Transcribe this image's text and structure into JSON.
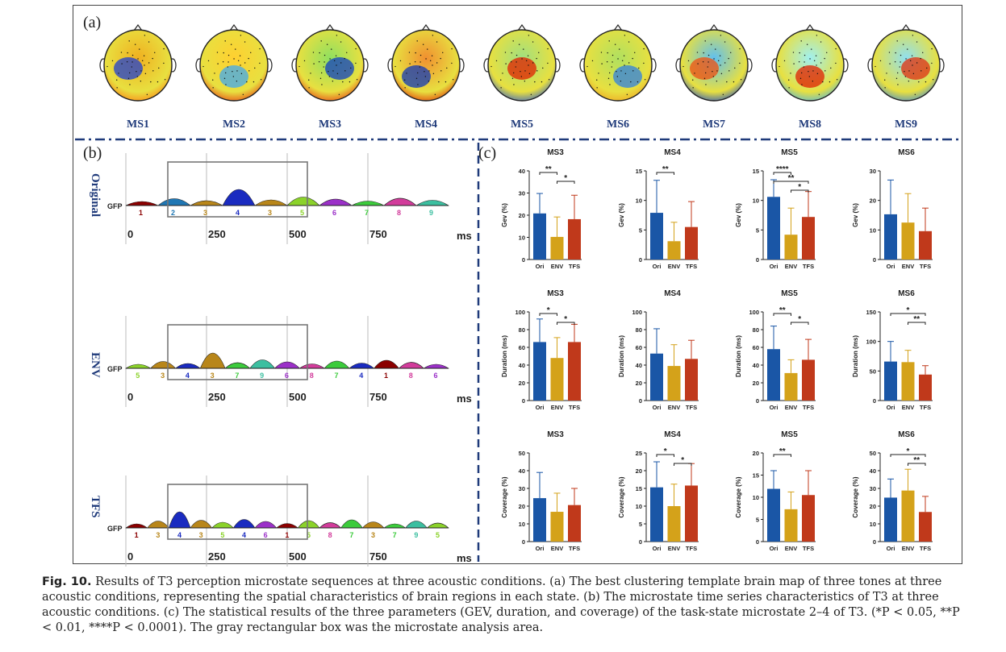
{
  "panel_labels": {
    "a": "(a)",
    "b": "(b)",
    "c": "(c)"
  },
  "brain_maps": [
    {
      "label": "MS1",
      "c1": "#f0b020",
      "c2": "#ff7a10",
      "c3": "#1f3fd0"
    },
    {
      "label": "MS2",
      "c1": "#ffd030",
      "c2": "#e83010",
      "c3": "#40a8f0"
    },
    {
      "label": "MS3",
      "c1": "#90e060",
      "c2": "#e83010",
      "c3": "#1040c0"
    },
    {
      "label": "MS4",
      "c1": "#f09030",
      "c2": "#e02000",
      "c3": "#1038b8"
    },
    {
      "label": "MS5",
      "c1": "#a0e080",
      "c2": "#2050d8",
      "c3": "#e02000"
    },
    {
      "label": "MS6",
      "c1": "#b0e060",
      "c2": "#f0a020",
      "c3": "#3080e0"
    },
    {
      "label": "MS7",
      "c1": "#60c0f0",
      "c2": "#1040d0",
      "c3": "#f05010"
    },
    {
      "label": "MS8",
      "c1": "#a0f0f0",
      "c2": "#40b0f0",
      "c3": "#e02000"
    },
    {
      "label": "MS9",
      "c1": "#90e0f0",
      "c2": "#3080e0",
      "c3": "#e03010"
    }
  ],
  "gfp": {
    "axis_label": "GFP",
    "ticks": [
      "0",
      "250",
      "500",
      "750"
    ],
    "unit": "ms",
    "rows": [
      {
        "condition": "Original",
        "numbers": [
          "1",
          "2",
          "3",
          "4",
          "3",
          "5",
          "6",
          "7",
          "8",
          "9"
        ]
      },
      {
        "condition": "ENV",
        "numbers": [
          "5",
          "3",
          "4",
          "3",
          "7",
          "9",
          "6",
          "8",
          "7",
          "4",
          "1",
          "8",
          "6"
        ]
      },
      {
        "condition": "TFS",
        "numbers": [
          "1",
          "3",
          "4",
          "3",
          "5",
          "4",
          "6",
          "1",
          "5",
          "8",
          "7",
          "3",
          "7",
          "9",
          "5"
        ]
      }
    ]
  },
  "chart_data": [
    {
      "type": "bar",
      "title": "MS3",
      "ylabel": "Gev (%)",
      "ylim": [
        0,
        40
      ],
      "yticks": [
        0,
        10,
        20,
        30,
        40
      ],
      "categories": [
        "Ori",
        "ENV",
        "TFS"
      ],
      "values": [
        20.8,
        10.2,
        18.2
      ],
      "errors": [
        9,
        9,
        10.8
      ],
      "sig": [
        {
          "a": 0,
          "b": 1,
          "label": "**"
        },
        {
          "a": 1,
          "b": 2,
          "label": "*"
        }
      ]
    },
    {
      "type": "bar",
      "title": "MS4",
      "ylabel": "Gev (%)",
      "ylim": [
        0,
        15
      ],
      "yticks": [
        0,
        5,
        10,
        15
      ],
      "categories": [
        "Ori",
        "ENV",
        "TFS"
      ],
      "values": [
        7.9,
        3.1,
        5.5
      ],
      "errors": [
        5.5,
        3.2,
        4.3
      ],
      "sig": [
        {
          "a": 0,
          "b": 1,
          "label": "**"
        }
      ]
    },
    {
      "type": "bar",
      "title": "MS5",
      "ylabel": "Gev (%)",
      "ylim": [
        0,
        15
      ],
      "yticks": [
        0,
        5,
        10,
        15
      ],
      "categories": [
        "Ori",
        "ENV",
        "TFS"
      ],
      "values": [
        10.6,
        4.2,
        7.2
      ],
      "errors": [
        2.9,
        4.5,
        4.3
      ],
      "sig": [
        {
          "a": 0,
          "b": 1,
          "label": "****"
        },
        {
          "a": 0,
          "b": 2,
          "label": "**"
        },
        {
          "a": 1,
          "b": 2,
          "label": "*"
        }
      ]
    },
    {
      "type": "bar",
      "title": "MS6",
      "ylabel": "Gev (%)",
      "ylim": [
        0,
        30
      ],
      "yticks": [
        0,
        10,
        20,
        30
      ],
      "categories": [
        "Ori",
        "ENV",
        "TFS"
      ],
      "values": [
        15.3,
        12.5,
        9.6
      ],
      "errors": [
        11.6,
        9.8,
        7.8
      ],
      "sig": []
    },
    {
      "type": "bar",
      "title": "MS3",
      "ylabel": "Duration (ms)",
      "ylim": [
        0,
        100
      ],
      "yticks": [
        0,
        20,
        40,
        60,
        80,
        100
      ],
      "categories": [
        "Ori",
        "ENV",
        "TFS"
      ],
      "values": [
        66,
        48,
        66
      ],
      "errors": [
        26,
        23,
        20
      ],
      "sig": [
        {
          "a": 0,
          "b": 1,
          "label": "*"
        },
        {
          "a": 1,
          "b": 2,
          "label": "*"
        }
      ]
    },
    {
      "type": "bar",
      "title": "MS4",
      "ylabel": "Duration (ms)",
      "ylim": [
        0,
        100
      ],
      "yticks": [
        0,
        20,
        40,
        60,
        80,
        100
      ],
      "categories": [
        "Ori",
        "ENV",
        "TFS"
      ],
      "values": [
        53,
        39,
        47
      ],
      "errors": [
        28,
        24,
        21
      ],
      "sig": []
    },
    {
      "type": "bar",
      "title": "MS5",
      "ylabel": "Duration (ms)",
      "ylim": [
        0,
        100
      ],
      "yticks": [
        0,
        20,
        40,
        60,
        80,
        100
      ],
      "categories": [
        "Ori",
        "ENV",
        "TFS"
      ],
      "values": [
        58,
        31,
        46
      ],
      "errors": [
        26,
        15,
        23
      ],
      "sig": [
        {
          "a": 0,
          "b": 1,
          "label": "**"
        },
        {
          "a": 1,
          "b": 2,
          "label": "*"
        }
      ]
    },
    {
      "type": "bar",
      "title": "MS6",
      "ylabel": "Duration (ms)",
      "ylim": [
        0,
        150
      ],
      "yticks": [
        0,
        50,
        100,
        150
      ],
      "categories": [
        "Ori",
        "ENV",
        "TFS"
      ],
      "values": [
        66,
        65,
        44
      ],
      "errors": [
        34,
        20,
        15
      ],
      "sig": [
        {
          "a": 0,
          "b": 2,
          "label": "*"
        },
        {
          "a": 1,
          "b": 2,
          "label": "**"
        }
      ]
    },
    {
      "type": "bar",
      "title": "MS3",
      "ylabel": "Coverage (%)",
      "ylim": [
        0,
        50
      ],
      "yticks": [
        0,
        10,
        20,
        30,
        40,
        50
      ],
      "categories": [
        "Ori",
        "ENV",
        "TFS"
      ],
      "values": [
        24.5,
        16.8,
        20.6
      ],
      "errors": [
        14.5,
        10.5,
        9.4
      ],
      "sig": []
    },
    {
      "type": "bar",
      "title": "MS4",
      "ylabel": "Coverage (%)",
      "ylim": [
        0,
        25
      ],
      "yticks": [
        0,
        5,
        10,
        15,
        20,
        25
      ],
      "categories": [
        "Ori",
        "ENV",
        "TFS"
      ],
      "values": [
        15.3,
        10,
        15.8
      ],
      "errors": [
        7.2,
        6.2,
        6.2
      ],
      "sig": [
        {
          "a": 0,
          "b": 1,
          "label": "*"
        },
        {
          "a": 1,
          "b": 2,
          "label": "*"
        }
      ]
    },
    {
      "type": "bar",
      "title": "MS5",
      "ylabel": "Coverage (%)",
      "ylim": [
        0,
        20
      ],
      "yticks": [
        0,
        5,
        10,
        15,
        20
      ],
      "categories": [
        "Ori",
        "ENV",
        "TFS"
      ],
      "values": [
        11.9,
        7.3,
        10.5
      ],
      "errors": [
        4.1,
        3.9,
        5.5
      ],
      "sig": [
        {
          "a": 0,
          "b": 1,
          "label": "**"
        }
      ]
    },
    {
      "type": "bar",
      "title": "MS6",
      "ylabel": "Coverage (%)",
      "ylim": [
        0,
        50
      ],
      "yticks": [
        0,
        10,
        20,
        30,
        40,
        50
      ],
      "categories": [
        "Ori",
        "ENV",
        "TFS"
      ],
      "values": [
        24.8,
        28.8,
        16.7
      ],
      "errors": [
        10.5,
        12,
        8.8
      ],
      "sig": [
        {
          "a": 0,
          "b": 2,
          "label": "*"
        },
        {
          "a": 1,
          "b": 2,
          "label": "**"
        }
      ]
    }
  ],
  "bar_colors": [
    "#1a56a6",
    "#d4a21a",
    "#c0391b"
  ],
  "caption": {
    "fig_label": "Fig. 10.",
    "text": " Results of T3 perception microstate sequences at three acoustic conditions. (a) The best clustering template brain map of three tones at three acoustic conditions, representing the spatial characteristics of brain regions in each state. (b) The microstate time series characteristics of T3 at three acoustic conditions. (c) The statistical results of the three parameters (GEV, duration, and coverage) of the task-state microstate 2–4 of T3. (*P < 0.05, **P < 0.01, ****P < 0.0001). The gray rectangular box was the microstate analysis area."
  }
}
